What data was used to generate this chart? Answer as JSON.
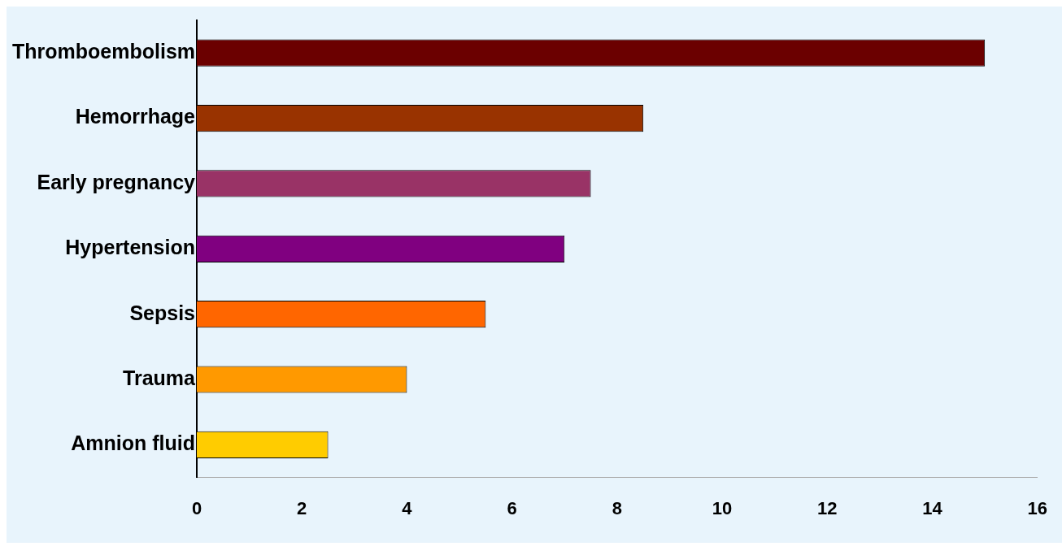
{
  "chart_data": {
    "type": "bar",
    "orientation": "horizontal",
    "categories": [
      "Thromboembolism",
      "Hemorrhage",
      "Early pregnancy",
      "Hypertension",
      "Sepsis",
      "Trauma",
      "Amnion fluid"
    ],
    "values": [
      15.0,
      8.5,
      7.5,
      7.0,
      5.5,
      4.0,
      2.5
    ],
    "colors": [
      "#6b0000",
      "#993300",
      "#993366",
      "#800080",
      "#ff6600",
      "#ff9900",
      "#ffcc00"
    ],
    "xlim": [
      0,
      16
    ],
    "xticks": [
      0,
      2,
      4,
      6,
      8,
      10,
      12,
      14,
      16
    ],
    "grid": false,
    "legend": false
  }
}
